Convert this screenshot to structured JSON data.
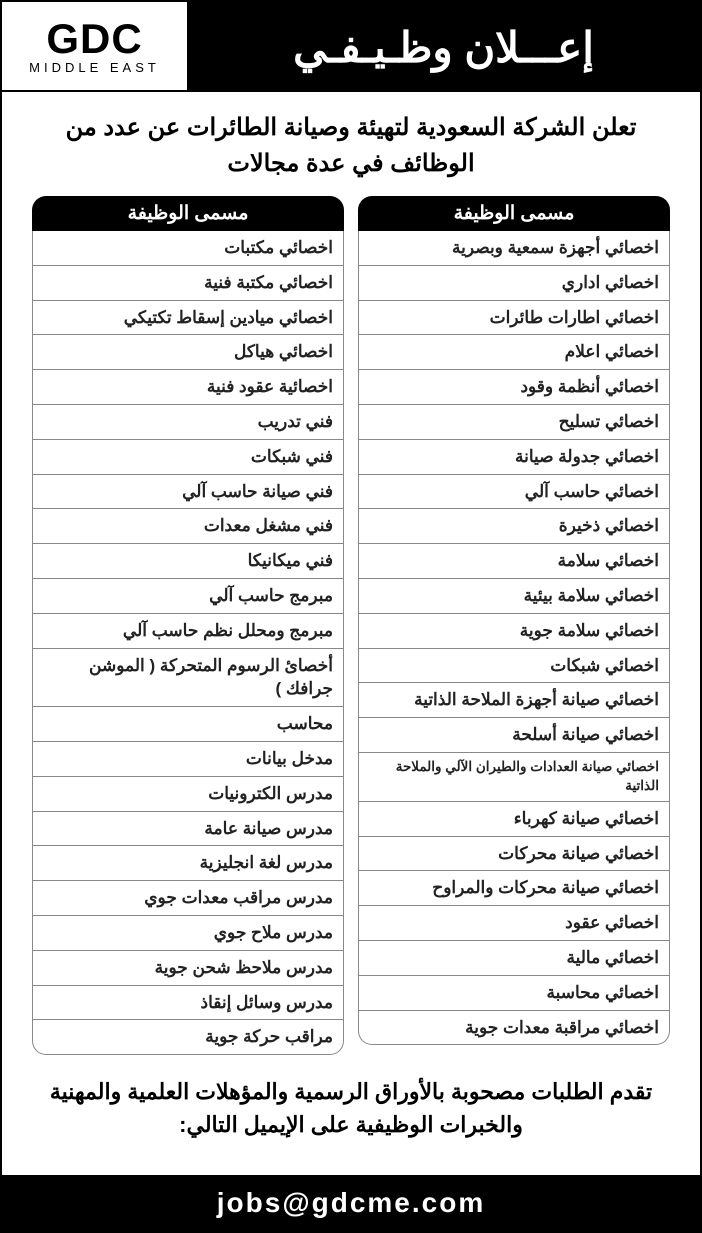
{
  "logo": {
    "main": "GDC",
    "sub": "MIDDLE EAST"
  },
  "banner": "إعـــلان وظـيـفـي",
  "intro": "تعلن الشركة السعودية لتهيئة وصيانة الطائرات عن عدد من الوظائف في عدة مجالات",
  "column_header": "مسمى الوظيفة",
  "col_right": [
    "اخصائي أجهزة سمعية وبصرية",
    "اخصائي اداري",
    "اخصائي اطارات طائرات",
    "اخصائي اعلام",
    "اخصائي أنظمة وقود",
    "اخصائي تسليح",
    "اخصائي جدولة صيانة",
    "اخصائي حاسب آلي",
    "اخصائي ذخيرة",
    "اخصائي سلامة",
    "اخصائي سلامة بيئية",
    "اخصائي سلامة جوية",
    "اخصائي شبكات",
    "اخصائي صيانة أجهزة الملاحة الذاتية",
    "اخصائي صيانة أسلحة",
    "اخصائي صيانة العدادات والطيران الآلي والملاحة الذاتية",
    "اخصائي صيانة كهرباء",
    "اخصائي صيانة محركات",
    "اخصائي صيانة محركات والمراوح",
    "اخصائي عقود",
    "اخصائي مالية",
    "اخصائي محاسبة",
    "اخصائي مراقبة معدات جوية"
  ],
  "col_left": [
    "اخصائي مكتبات",
    "اخصائي مكتبة فنية",
    "اخصائي ميادين إسقاط تكتيكي",
    "اخصائي هياكل",
    "اخصائية عقود فنية",
    "فني تدريب",
    "فني شبكات",
    "فني صيانة حاسب آلي",
    "فني مشغل معدات",
    "فني ميكانيكا",
    "مبرمج حاسب آلي",
    "مبرمج ومحلل نظم حاسب آلي",
    "أخصائ الرسوم المتحركة ( الموشن جرافك )",
    "محاسب",
    "مدخل بيانات",
    "مدرس الكترونيات",
    "مدرس صيانة عامة",
    "مدرس لغة انجليزية",
    "مدرس مراقب معدات جوي",
    "مدرس ملاح جوي",
    "مدرس ملاحظ شحن جوية",
    "مدرس وسائل إنقاذ",
    "مراقب حركة جوية"
  ],
  "footer": "تقدم الطلبات مصحوبة بالأوراق الرسمية والمؤهلات العلمية والمهنية والخبرات الوظيفية على الإيميل التالي:",
  "email": "jobs@gdcme.com"
}
